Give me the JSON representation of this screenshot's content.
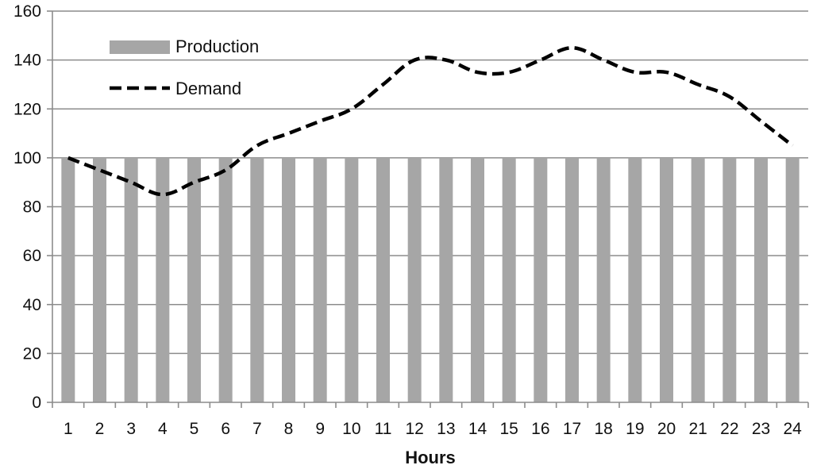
{
  "chart_data": {
    "type": "bar",
    "title": "",
    "xlabel": "Hours",
    "ylabel": "",
    "ylim": [
      0,
      160
    ],
    "yticks": [
      0,
      20,
      40,
      60,
      80,
      100,
      120,
      140,
      160
    ],
    "grid": true,
    "legend_position": "top-left",
    "categories": [
      "1",
      "2",
      "3",
      "4",
      "5",
      "6",
      "7",
      "8",
      "9",
      "10",
      "11",
      "12",
      "13",
      "14",
      "15",
      "16",
      "17",
      "18",
      "19",
      "20",
      "21",
      "22",
      "23",
      "24"
    ],
    "series": [
      {
        "name": "Production",
        "type": "bar",
        "color": "#a6a6a6",
        "values": [
          100,
          100,
          100,
          100,
          100,
          100,
          100,
          100,
          100,
          100,
          100,
          100,
          100,
          100,
          100,
          100,
          100,
          100,
          100,
          100,
          100,
          100,
          100,
          100
        ]
      },
      {
        "name": "Demand",
        "type": "line",
        "line_style": "dashed",
        "color": "#000000",
        "values": [
          100,
          95,
          90,
          85,
          90,
          95,
          105,
          110,
          115,
          120,
          130,
          140,
          140,
          135,
          135,
          140,
          145,
          140,
          135,
          135,
          130,
          125,
          115,
          105
        ]
      }
    ]
  }
}
